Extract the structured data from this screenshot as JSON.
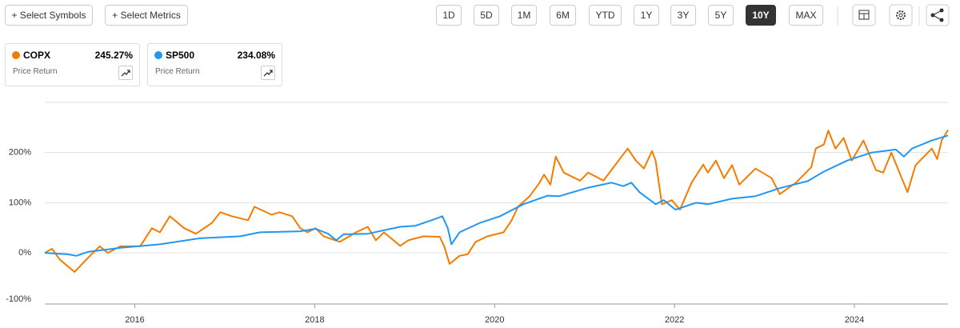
{
  "toolbar": {
    "left_buttons": [
      "+ Select Symbols",
      "+ Select Metrics"
    ],
    "ranges": [
      "1D",
      "5D",
      "1M",
      "6M",
      "YTD",
      "1Y",
      "3Y",
      "5Y",
      "10Y",
      "MAX"
    ],
    "active_range": "10Y"
  },
  "chart_data": {
    "type": "line",
    "series": [
      {
        "name": "COPX",
        "color": "#f57c00",
        "total_return_label": "245.27%",
        "metric": "Price Return",
        "x": [
          2015.0,
          2015.08,
          2015.17,
          2015.33,
          2015.48,
          2015.61,
          2015.7,
          2015.84,
          2016.06,
          2016.19,
          2016.28,
          2016.39,
          2016.55,
          2016.68,
          2016.86,
          2016.95,
          2017.08,
          2017.26,
          2017.33,
          2017.52,
          2017.61,
          2017.75,
          2017.84,
          2017.92,
          2018.01,
          2018.1,
          2018.28,
          2018.46,
          2018.59,
          2018.68,
          2018.77,
          2018.95,
          2019.04,
          2019.21,
          2019.39,
          2019.44,
          2019.5,
          2019.61,
          2019.7,
          2019.79,
          2019.92,
          2020.1,
          2020.19,
          2020.26,
          2020.39,
          2020.5,
          2020.55,
          2020.62,
          2020.68,
          2020.77,
          2020.95,
          2021.04,
          2021.21,
          2021.39,
          2021.48,
          2021.57,
          2021.66,
          2021.75,
          2021.79,
          2021.86,
          2021.97,
          2022.06,
          2022.19,
          2022.32,
          2022.37,
          2022.46,
          2022.55,
          2022.64,
          2022.72,
          2022.9,
          2023.08,
          2023.17,
          2023.35,
          2023.52,
          2023.57,
          2023.66,
          2023.71,
          2023.79,
          2023.88,
          2023.97,
          2024.1,
          2024.24,
          2024.32,
          2024.41,
          2024.5,
          2024.59,
          2024.68,
          2024.86,
          2024.92,
          2024.97,
          2025.04
        ],
        "values": [
          0,
          8,
          -14,
          -38,
          -10,
          13,
          0,
          13,
          13,
          49,
          41,
          73,
          49,
          38,
          60,
          81,
          73,
          65,
          92,
          76,
          81,
          73,
          49,
          41,
          49,
          33,
          22,
          41,
          52,
          25,
          41,
          14,
          25,
          33,
          32,
          13,
          -22,
          -6,
          -3,
          22,
          33,
          41,
          65,
          92,
          113,
          140,
          156,
          136,
          192,
          160,
          144,
          160,
          144,
          187,
          208,
          184,
          168,
          203,
          184,
          97,
          105,
          86,
          140,
          176,
          160,
          184,
          149,
          175,
          136,
          168,
          149,
          117,
          140,
          171,
          208,
          216,
          244,
          208,
          229,
          184,
          224,
          165,
          160,
          200,
          160,
          121,
          175,
          208,
          187,
          224,
          245
        ]
      },
      {
        "name": "SP500",
        "color": "#2196f3",
        "total_return_label": "234.08%",
        "metric": "Price Return",
        "x": [
          2015.0,
          2015.26,
          2015.35,
          2015.48,
          2015.84,
          2016.28,
          2016.72,
          2017.17,
          2017.39,
          2017.84,
          2018.01,
          2018.15,
          2018.24,
          2018.32,
          2018.59,
          2018.95,
          2019.12,
          2019.3,
          2019.42,
          2019.48,
          2019.52,
          2019.61,
          2019.84,
          2020.06,
          2020.32,
          2020.59,
          2020.72,
          2021.04,
          2021.3,
          2021.43,
          2021.52,
          2021.61,
          2021.79,
          2021.88,
          2022.01,
          2022.24,
          2022.37,
          2022.64,
          2022.9,
          2023.17,
          2023.48,
          2023.66,
          2023.92,
          2024.19,
          2024.46,
          2024.55,
          2024.64,
          2024.86,
          2025.04
        ],
        "values": [
          0,
          -3,
          -6,
          2,
          10,
          17,
          29,
          33,
          41,
          43,
          48,
          38,
          25,
          37,
          38,
          52,
          54,
          65,
          73,
          49,
          17,
          41,
          60,
          73,
          97,
          114,
          113,
          130,
          140,
          133,
          140,
          121,
          97,
          105,
          86,
          100,
          97,
          108,
          113,
          129,
          143,
          162,
          184,
          200,
          206,
          192,
          208,
          224,
          234
        ]
      }
    ],
    "xlim": [
      2015,
      2025.04
    ],
    "xticks": [
      2016,
      2018,
      2020,
      2022,
      2024
    ],
    "ylim": [
      -102,
      300
    ],
    "yticks": [
      {
        "value": -100,
        "label": "-100%"
      },
      {
        "value": 0,
        "label": "0%"
      },
      {
        "value": 100,
        "label": "100%"
      },
      {
        "value": 200,
        "label": "200%"
      }
    ],
    "grid": true
  }
}
